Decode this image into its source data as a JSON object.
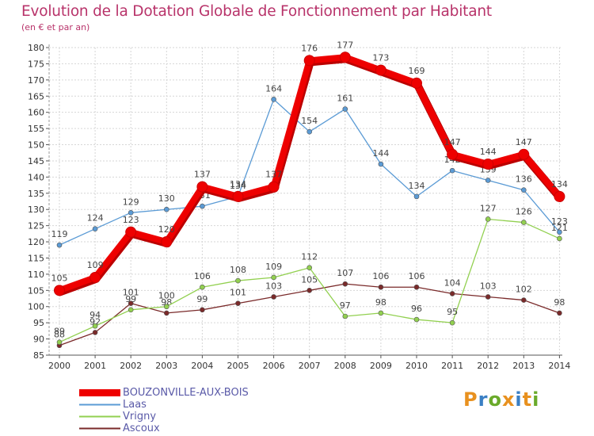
{
  "title": "Evolution de la Dotation Globale de Fonctionnement par Habitant",
  "subtitle": "(en € et par an)",
  "logo": {
    "text": "Proxiti",
    "colors": [
      "#e8911f",
      "#3a7fc4",
      "#6aaa2a",
      "#e8911f",
      "#3a7fc4",
      "#e8911f",
      "#6aaa2a"
    ]
  },
  "colors": {
    "title": "#b8336a",
    "axis": "#333333",
    "grid": "#d0d0d0",
    "legend_text": "#5a5aa8"
  },
  "chart_data": {
    "type": "line",
    "title": "Evolution de la Dotation Globale de Fonctionnement par Habitant",
    "subtitle": "(en € et par an)",
    "xlabel": "",
    "ylabel": "",
    "x": [
      2000,
      2001,
      2002,
      2003,
      2004,
      2005,
      2006,
      2007,
      2008,
      2009,
      2010,
      2011,
      2012,
      2013,
      2014
    ],
    "ylim": [
      85,
      180
    ],
    "yticks": [
      85,
      90,
      95,
      100,
      105,
      110,
      115,
      120,
      125,
      130,
      135,
      140,
      145,
      150,
      155,
      160,
      165,
      170,
      175,
      180
    ],
    "grid": true,
    "legend_position": "bottom-left",
    "series": [
      {
        "name": "BOUZONVILLE-AUX-BOIS",
        "color": "#ee0000",
        "values": [
          105,
          109,
          123,
          120,
          137,
          134,
          137,
          176,
          177,
          173,
          169,
          147,
          144,
          147,
          134
        ],
        "labels": [
          "105",
          "109",
          "123",
          "120",
          "137",
          "134",
          "137",
          "176",
          "177",
          "173",
          "169",
          "147",
          "144",
          "147",
          "134"
        ]
      },
      {
        "name": "Laas",
        "color": "#5b9bd5",
        "values": [
          119,
          124,
          129,
          130,
          131,
          134,
          164,
          154,
          161,
          144,
          134,
          142,
          139,
          136,
          123
        ],
        "labels": [
          "119",
          "124",
          "129",
          "130",
          "131",
          "134",
          "164",
          "154",
          "161",
          "144",
          "134",
          "142",
          "139",
          "136",
          "123"
        ]
      },
      {
        "name": "Vrigny",
        "color": "#92d050",
        "values": [
          89,
          94,
          99,
          100,
          106,
          108,
          109,
          112,
          97,
          98,
          96,
          95,
          127,
          126,
          121
        ],
        "labels": [
          "89",
          "94",
          "99",
          "100",
          "106",
          "108",
          "109",
          "112",
          "97",
          "98",
          "96",
          "95",
          "127",
          "126",
          "121"
        ]
      },
      {
        "name": "Ascoux",
        "color": "#7a2a2a",
        "values": [
          88,
          92,
          101,
          98,
          99,
          101,
          103,
          105,
          107,
          106,
          106,
          104,
          103,
          102,
          98
        ],
        "labels": [
          "88",
          "92",
          "101",
          "98",
          "99",
          "101",
          "103",
          "105",
          "107",
          "106",
          "106",
          "104",
          "103",
          "102",
          "98"
        ]
      }
    ]
  }
}
